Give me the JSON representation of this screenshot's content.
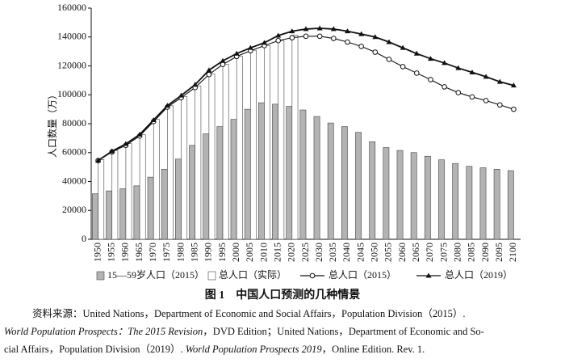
{
  "chart_data": {
    "type": "bar",
    "y_label": "人口数量（万）",
    "caption": "图 1　中国人口预测的几种情景",
    "source": [
      [
        {
          "text": "资料来源：United Nations，Department of Economic and Social Affairs，Population Division（2015）.",
          "italic": false
        }
      ],
      [
        {
          "text": "World Population Prospects：The 2015 Revision",
          "italic": true
        },
        {
          "text": "，DVD Edition；United Nations，Department of Economic and So-",
          "italic": false
        }
      ],
      [
        {
          "text": "cial Affairs，Population Division（2019）. ",
          "italic": false
        },
        {
          "text": "World Population Prospects 2019",
          "italic": true
        },
        {
          "text": "，Online Edition. Rev. 1.",
          "italic": false
        }
      ]
    ],
    "categories": [
      "1950",
      "1955",
      "1960",
      "1965",
      "1970",
      "1975",
      "1980",
      "1985",
      "1990",
      "1995",
      "2000",
      "2005",
      "2010",
      "2015",
      "2020",
      "2025",
      "2030",
      "2035",
      "2040",
      "2045",
      "2050",
      "2055",
      "2060",
      "2065",
      "2070",
      "2075",
      "2080",
      "2085",
      "2090",
      "2095",
      "2100"
    ],
    "series": [
      {
        "name": "15—59岁人口（2015）",
        "type": "bar",
        "color": "#b3b3b3",
        "values": [
          31500,
          33500,
          35000,
          37000,
          43000,
          48500,
          55500,
          65000,
          73000,
          78000,
          83000,
          90000,
          94500,
          93500,
          92000,
          89500,
          85000,
          80500,
          78000,
          74000,
          67500,
          63500,
          61500,
          60000,
          57500,
          55000,
          52500,
          50500,
          49500,
          48500,
          47500
        ]
      },
      {
        "name": "总人口（实际）",
        "type": "bar",
        "color": "#ffffff",
        "values": [
          55200,
          61500,
          66200,
          72500,
          83000,
          92400,
          98700,
          105900,
          114300,
          121100,
          126700,
          130800,
          134100,
          137500,
          141200,
          null,
          null,
          null,
          null,
          null,
          null,
          null,
          null,
          null,
          null,
          null,
          null,
          null,
          null,
          null,
          null
        ]
      },
      {
        "name": "总人口（2015）",
        "type": "line",
        "marker": "circle",
        "color": "#111111",
        "values": [
          54500,
          60500,
          65000,
          71500,
          81500,
          91500,
          98000,
          105000,
          114000,
          121000,
          126500,
          130500,
          134000,
          137500,
          139500,
          140500,
          140500,
          139000,
          136500,
          133500,
          129500,
          124500,
          119500,
          115000,
          110500,
          105500,
          101500,
          98500,
          96000,
          93000,
          90000
        ]
      },
      {
        "name": "总人口（2019）",
        "type": "line",
        "marker": "triangle",
        "color": "#111111",
        "values": [
          54500,
          61000,
          66000,
          72500,
          82500,
          92500,
          99500,
          107000,
          117000,
          123500,
          128500,
          132500,
          136000,
          141000,
          144000,
          145500,
          146000,
          145500,
          144000,
          142000,
          140000,
          136500,
          132500,
          128500,
          125000,
          122000,
          118500,
          115500,
          112500,
          109000,
          106500
        ]
      }
    ],
    "ylim": [
      0,
      160000
    ],
    "yticks": [
      0,
      20000,
      40000,
      60000,
      80000,
      100000,
      120000,
      140000,
      160000
    ],
    "legend": "bottom"
  }
}
